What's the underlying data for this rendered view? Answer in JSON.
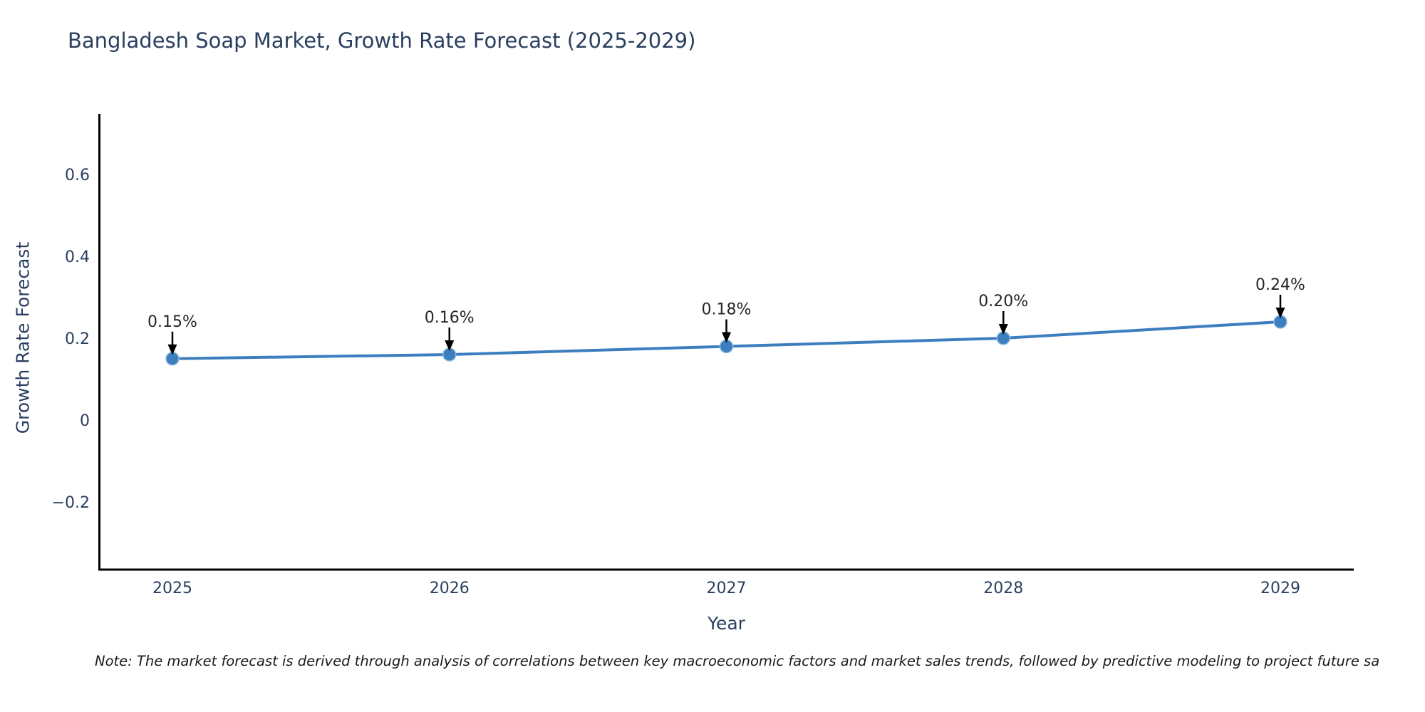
{
  "chart_data": {
    "type": "line",
    "title": "Bangladesh Soap Market, Growth Rate Forecast (2025-2029)",
    "xlabel": "Year",
    "ylabel": "Growth Rate Forecast",
    "footnote": "Note: The market forecast is derived through analysis of correlations between key macroeconomic factors and market sales trends, followed by predictive modeling to project future sa",
    "x": [
      2025,
      2026,
      2027,
      2028,
      2029
    ],
    "series": [
      {
        "name": "Growth Rate Forecast",
        "values": [
          0.15,
          0.16,
          0.18,
          0.2,
          0.24
        ]
      }
    ],
    "point_labels": [
      "0.15%",
      "0.16%",
      "0.18%",
      "0.20%",
      "0.24%"
    ],
    "x_tick_labels": [
      "2025",
      "2026",
      "2027",
      "2028",
      "2029"
    ],
    "y_ticks": [
      {
        "value": 0.6,
        "label": "0.6"
      },
      {
        "value": 0.4,
        "label": "0.4"
      },
      {
        "value": 0.2,
        "label": "0.2"
      },
      {
        "value": 0,
        "label": "0"
      },
      {
        "value": -0.2,
        "label": "−0.2"
      }
    ],
    "ylim": [
      -0.37,
      0.75
    ],
    "grid": false,
    "legend": "none",
    "annotation_style": "down-arrow-to-point",
    "colors": {
      "line": "#3d7ebf",
      "marker": "#3d7ebf",
      "marker_edge": "#8fbcdf",
      "axis_text": "#2a3f5f",
      "annotation_text": "#262626",
      "arrow": "#000000",
      "spine": "#000000",
      "background": "#ffffff"
    }
  }
}
